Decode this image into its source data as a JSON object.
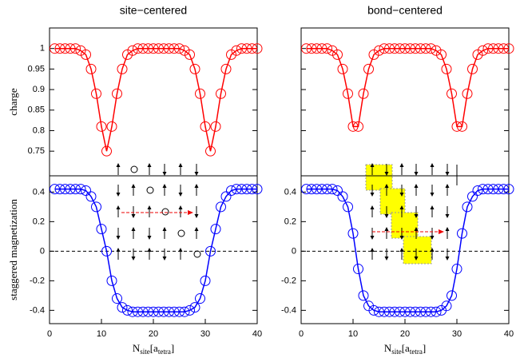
{
  "chart_data": [
    {
      "type": "line",
      "title": "site−centered",
      "ylabel": "charge",
      "xlim": [
        0,
        40
      ],
      "ylim": [
        0.69,
        1.05
      ],
      "yticks": [
        0.75,
        0.8,
        0.85,
        0.9,
        0.95,
        1
      ],
      "ytick_labels": true,
      "series": [
        {
          "color": "#ff0000",
          "marker": "circle",
          "x": [
            1,
            2,
            3,
            4,
            5,
            6,
            7,
            8,
            9,
            10,
            11,
            12,
            13,
            14,
            15,
            16,
            17,
            18,
            19,
            20,
            21,
            22,
            23,
            24,
            25,
            26,
            27,
            28,
            29,
            30,
            31,
            32,
            33,
            34,
            35,
            36,
            37,
            38,
            39,
            40
          ],
          "values": [
            1,
            1,
            1,
            1,
            1,
            0.995,
            0.985,
            0.95,
            0.89,
            0.81,
            0.75,
            0.81,
            0.89,
            0.95,
            0.985,
            0.995,
            1,
            1,
            1,
            1,
            1,
            1,
            1,
            1,
            1,
            0.995,
            0.985,
            0.95,
            0.89,
            0.81,
            0.75,
            0.81,
            0.89,
            0.95,
            0.985,
            0.995,
            1,
            1,
            1,
            1
          ]
        }
      ]
    },
    {
      "type": "line",
      "title": "bond−centered",
      "xlim": [
        0,
        40
      ],
      "ylim": [
        0.69,
        1.05
      ],
      "yticks": [
        0.75,
        0.8,
        0.85,
        0.9,
        0.95,
        1
      ],
      "ytick_labels": false,
      "series": [
        {
          "color": "#ff0000",
          "marker": "circle",
          "x": [
            1,
            2,
            3,
            4,
            5,
            6,
            7,
            8,
            9,
            10,
            11,
            12,
            13,
            14,
            15,
            16,
            17,
            18,
            19,
            20,
            21,
            22,
            23,
            24,
            25,
            26,
            27,
            28,
            29,
            30,
            31,
            32,
            33,
            34,
            35,
            36,
            37,
            38,
            39,
            40
          ],
          "values": [
            1,
            1,
            1,
            1,
            1,
            0.995,
            0.985,
            0.95,
            0.89,
            0.81,
            0.81,
            0.89,
            0.95,
            0.985,
            0.995,
            1,
            1,
            1,
            1,
            1,
            1,
            1,
            1,
            1,
            1,
            0.995,
            0.985,
            0.95,
            0.89,
            0.81,
            0.81,
            0.89,
            0.95,
            0.985,
            0.995,
            1,
            1,
            1,
            1,
            1
          ]
        }
      ]
    },
    {
      "type": "line",
      "ylabel": "staggered magnetization",
      "xlabel": [
        "N",
        "site",
        "[a",
        "tetra",
        "]"
      ],
      "xlim": [
        0,
        40
      ],
      "xticks": [
        0,
        10,
        20,
        30,
        40
      ],
      "ylim": [
        -0.49,
        0.51
      ],
      "yticks": [
        -0.4,
        -0.2,
        0,
        0.2,
        0.4
      ],
      "ytick_labels": true,
      "reference_line": {
        "y": 0,
        "style": "dashed"
      },
      "series": [
        {
          "color": "#0000ff",
          "marker": "circle",
          "x": [
            1,
            2,
            3,
            4,
            5,
            6,
            7,
            8,
            9,
            10,
            11,
            12,
            13,
            14,
            15,
            16,
            17,
            18,
            19,
            20,
            21,
            22,
            23,
            24,
            25,
            26,
            27,
            28,
            29,
            30,
            31,
            32,
            33,
            34,
            35,
            36,
            37,
            38,
            39,
            40
          ],
          "values": [
            0.42,
            0.42,
            0.42,
            0.42,
            0.42,
            0.42,
            0.41,
            0.37,
            0.3,
            0.15,
            0,
            -0.2,
            -0.32,
            -0.38,
            -0.4,
            -0.41,
            -0.41,
            -0.41,
            -0.41,
            -0.41,
            -0.41,
            -0.41,
            -0.41,
            -0.41,
            -0.41,
            -0.41,
            -0.4,
            -0.38,
            -0.32,
            -0.2,
            0,
            0.15,
            0.3,
            0.37,
            0.41,
            0.42,
            0.42,
            0.42,
            0.42,
            0.42
          ]
        }
      ]
    },
    {
      "type": "line",
      "xlabel": [
        "N",
        "site",
        "[a",
        "tetra",
        "]"
      ],
      "xlim": [
        0,
        40
      ],
      "xticks": [
        0,
        10,
        20,
        30,
        40
      ],
      "ylim": [
        -0.49,
        0.51
      ],
      "yticks": [
        -0.4,
        -0.2,
        0,
        0.2,
        0.4
      ],
      "ytick_labels": true,
      "reference_line": {
        "y": 0,
        "style": "dashed"
      },
      "series": [
        {
          "color": "#0000ff",
          "marker": "circle",
          "x": [
            1,
            2,
            3,
            4,
            5,
            6,
            7,
            8,
            9,
            10,
            11,
            12,
            13,
            14,
            15,
            16,
            17,
            18,
            19,
            20,
            21,
            22,
            23,
            24,
            25,
            26,
            27,
            28,
            29,
            30,
            31,
            32,
            33,
            34,
            35,
            36,
            37,
            38,
            39,
            40
          ],
          "values": [
            0.42,
            0.42,
            0.42,
            0.42,
            0.42,
            0.42,
            0.41,
            0.37,
            0.3,
            0.12,
            -0.12,
            -0.3,
            -0.37,
            -0.4,
            -0.41,
            -0.41,
            -0.41,
            -0.41,
            -0.41,
            -0.41,
            -0.41,
            -0.41,
            -0.41,
            -0.41,
            -0.41,
            -0.41,
            -0.4,
            -0.37,
            -0.3,
            -0.12,
            0.12,
            0.3,
            0.37,
            0.41,
            0.42,
            0.42,
            0.42,
            0.42,
            0.42,
            0.42
          ]
        }
      ]
    }
  ]
}
